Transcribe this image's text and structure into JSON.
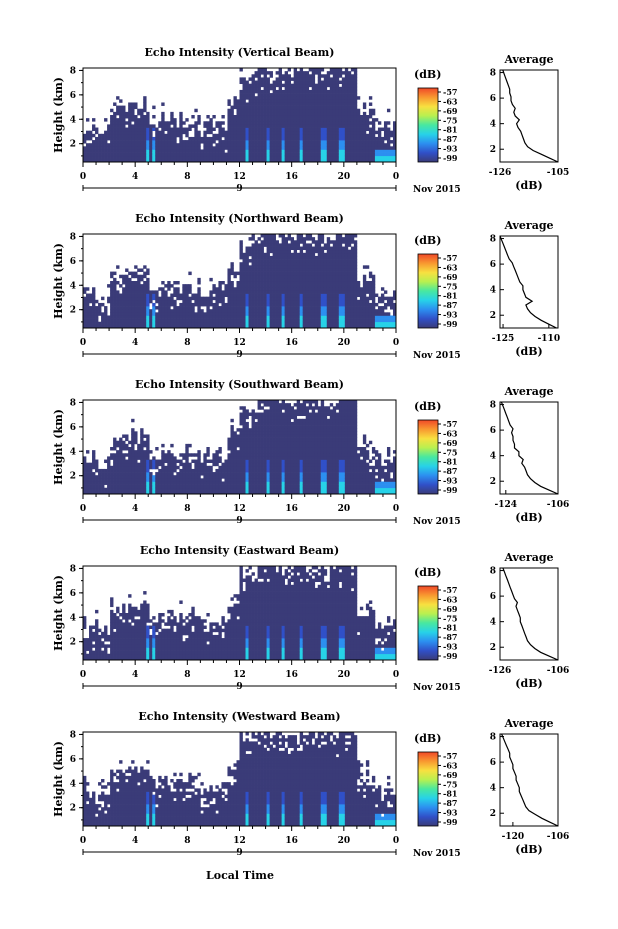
{
  "figure": {
    "bottom_xlabel": "Local Time",
    "date_label": "Nov 2015",
    "day_label": "9",
    "colorbar_unit": "(dB)",
    "colorbar_ticks": [
      "-57",
      "-63",
      "-69",
      "-75",
      "-81",
      "-87",
      "-93",
      "-99"
    ],
    "colors": {
      "background_field": "#3a3b78",
      "colormap": [
        "#3a3b78",
        "#3050c8",
        "#2c8ff0",
        "#27d2e8",
        "#48e8a0",
        "#b8f050",
        "#f8e040",
        "#f89830",
        "#f04828"
      ]
    }
  },
  "chart_data": [
    {
      "type": "heatmap",
      "title": "Echo Intensity (Vertical Beam)",
      "ylabel": "Height (km)",
      "x_ticks": [
        "0",
        "4",
        "8",
        "12",
        "16",
        "20",
        "0"
      ],
      "xlim": [
        0,
        24
      ],
      "y_ticks": [
        "2",
        "4",
        "6",
        "8"
      ],
      "ylim": [
        0.5,
        8.2
      ],
      "colorbar_range_db": [
        -99,
        -57
      ],
      "average_profile": {
        "title": "Average",
        "xlabel": "(dB)",
        "x_ticks": [
          "-126",
          "-105"
        ],
        "xlim": [
          -126,
          -105
        ],
        "y_ticks": [
          "2",
          "4",
          "6",
          "8"
        ],
        "ylim": [
          1,
          8.2
        ],
        "height_km": [
          1.0,
          1.3,
          1.6,
          1.9,
          2.2,
          2.5,
          2.8,
          3.1,
          3.4,
          3.7,
          4.0,
          4.3,
          4.6,
          4.9,
          5.2,
          5.5,
          5.8,
          6.1,
          6.4,
          6.7,
          7.0,
          7.3,
          7.6,
          7.9,
          8.2
        ],
        "value_db": [
          -105,
          -108,
          -111,
          -114,
          -116,
          -117,
          -117.5,
          -118,
          -118.5,
          -119.5,
          -120,
          -119,
          -120.5,
          -121,
          -120.5,
          -121.5,
          -122,
          -122,
          -122.5,
          -122.5,
          -123,
          -123.5,
          -124,
          -124.5,
          -125
        ]
      }
    },
    {
      "type": "heatmap",
      "title": "Echo Intensity (Northward Beam)",
      "ylabel": "Height (km)",
      "x_ticks": [
        "0",
        "4",
        "8",
        "12",
        "16",
        "20",
        "0"
      ],
      "xlim": [
        0,
        24
      ],
      "y_ticks": [
        "2",
        "4",
        "6",
        "8"
      ],
      "ylim": [
        0.5,
        8.2
      ],
      "colorbar_range_db": [
        -99,
        -57
      ],
      "average_profile": {
        "title": "Average",
        "xlabel": "(dB)",
        "x_ticks": [
          "-125",
          "-110"
        ],
        "xlim": [
          -126,
          -107
        ],
        "y_ticks": [
          "2",
          "4",
          "6",
          "8"
        ],
        "ylim": [
          1,
          8.2
        ],
        "height_km": [
          1.0,
          1.3,
          1.6,
          1.9,
          2.2,
          2.5,
          2.8,
          3.1,
          3.4,
          3.7,
          4.0,
          4.3,
          4.6,
          4.9,
          5.2,
          5.5,
          5.8,
          6.1,
          6.4,
          6.7,
          7.0,
          7.3,
          7.6,
          7.9,
          8.2
        ],
        "value_db": [
          -107.5,
          -110,
          -112.5,
          -114.5,
          -116,
          -117,
          -117.5,
          -115.5,
          -117.5,
          -118,
          -118.5,
          -118.5,
          -119.5,
          -120,
          -120.5,
          -121,
          -121.5,
          -122,
          -123,
          -123.5,
          -124,
          -124.5,
          -125,
          -125.5,
          -126
        ]
      }
    },
    {
      "type": "heatmap",
      "title": "Echo Intensity (Southward Beam)",
      "ylabel": "Height (km)",
      "x_ticks": [
        "0",
        "4",
        "8",
        "12",
        "16",
        "20",
        "0"
      ],
      "xlim": [
        0,
        24
      ],
      "y_ticks": [
        "2",
        "4",
        "6",
        "8"
      ],
      "ylim": [
        0.5,
        8.2
      ],
      "colorbar_range_db": [
        -99,
        -57
      ],
      "average_profile": {
        "title": "Average",
        "xlabel": "(dB)",
        "x_ticks": [
          "-124",
          "-106"
        ],
        "xlim": [
          -126,
          -106
        ],
        "y_ticks": [
          "2",
          "4",
          "6",
          "8"
        ],
        "ylim": [
          1,
          8.2
        ],
        "height_km": [
          1.0,
          1.3,
          1.6,
          1.9,
          2.2,
          2.5,
          2.8,
          3.1,
          3.4,
          3.7,
          4.0,
          4.3,
          4.6,
          4.9,
          5.2,
          5.5,
          5.8,
          6.1,
          6.4,
          6.7,
          7.0,
          7.3,
          7.6,
          7.9,
          8.2
        ],
        "value_db": [
          -106,
          -109,
          -112,
          -114,
          -115.5,
          -116.5,
          -117,
          -117.5,
          -118.5,
          -118,
          -119.5,
          -119.5,
          -121,
          -121,
          -121.5,
          -121.5,
          -122,
          -121.5,
          -122.5,
          -123,
          -123.5,
          -124,
          -124.5,
          -125,
          -125.5
        ]
      }
    },
    {
      "type": "heatmap",
      "title": "Echo Intensity (Eastward Beam)",
      "ylabel": "Height (km)",
      "x_ticks": [
        "0",
        "4",
        "8",
        "12",
        "16",
        "20",
        "0"
      ],
      "xlim": [
        0,
        24
      ],
      "y_ticks": [
        "2",
        "4",
        "6",
        "8"
      ],
      "ylim": [
        0.5,
        8.2
      ],
      "colorbar_range_db": [
        -99,
        -57
      ],
      "average_profile": {
        "title": "Average",
        "xlabel": "(dB)",
        "x_ticks": [
          "-126",
          "-106"
        ],
        "xlim": [
          -126,
          -106
        ],
        "y_ticks": [
          "2",
          "4",
          "6",
          "8"
        ],
        "ylim": [
          1,
          8.2
        ],
        "height_km": [
          1.0,
          1.3,
          1.6,
          1.9,
          2.2,
          2.5,
          2.8,
          3.1,
          3.4,
          3.7,
          4.0,
          4.3,
          4.6,
          4.9,
          5.2,
          5.5,
          5.8,
          6.1,
          6.4,
          6.7,
          7.0,
          7.3,
          7.6,
          7.9,
          8.2
        ],
        "value_db": [
          -106,
          -109,
          -112,
          -114,
          -115.5,
          -116.5,
          -117,
          -117.5,
          -118,
          -118.5,
          -119,
          -119,
          -119.5,
          -120,
          -120.5,
          -120,
          -121,
          -121.5,
          -122,
          -122.5,
          -123,
          -123.5,
          -124,
          -124.5,
          -125
        ]
      }
    },
    {
      "type": "heatmap",
      "title": "Echo Intensity (Westward Beam)",
      "ylabel": "Height (km)",
      "x_ticks": [
        "0",
        "4",
        "8",
        "12",
        "16",
        "20",
        "0"
      ],
      "xlim": [
        0,
        24
      ],
      "y_ticks": [
        "2",
        "4",
        "6",
        "8"
      ],
      "ylim": [
        0.5,
        8.2
      ],
      "colorbar_range_db": [
        -99,
        -57
      ],
      "average_profile": {
        "title": "Average",
        "xlabel": "(dB)",
        "x_ticks": [
          "-120",
          "-106"
        ],
        "xlim": [
          -124,
          -106
        ],
        "y_ticks": [
          "2",
          "4",
          "6",
          "8"
        ],
        "ylim": [
          1,
          8.2
        ],
        "height_km": [
          1.0,
          1.3,
          1.6,
          1.9,
          2.2,
          2.5,
          2.8,
          3.1,
          3.4,
          3.7,
          4.0,
          4.3,
          4.6,
          4.9,
          5.2,
          5.5,
          5.8,
          6.1,
          6.4,
          6.7,
          7.0,
          7.3,
          7.6,
          7.9,
          8.2
        ],
        "value_db": [
          -106,
          -108.5,
          -111,
          -113,
          -115,
          -116,
          -116.5,
          -117,
          -117.5,
          -118,
          -118,
          -118.5,
          -119,
          -119,
          -119.5,
          -120,
          -120,
          -120.5,
          -121,
          -121,
          -121.5,
          -122,
          -122.5,
          -123,
          -123.5
        ]
      }
    }
  ]
}
